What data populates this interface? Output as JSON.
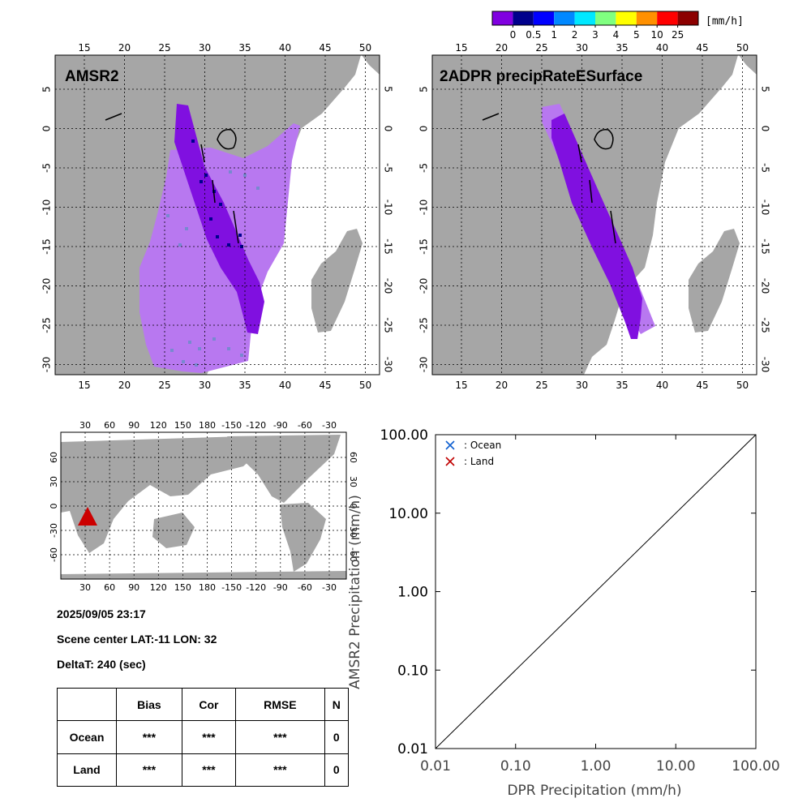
{
  "colorbar": {
    "unit_label": "[mm/h]",
    "ticks": [
      "0",
      "0.5",
      "1",
      "2",
      "3",
      "4",
      "5",
      "10",
      "25"
    ],
    "colors": [
      "#8000e0",
      "#00008c",
      "#0000ff",
      "#0088ff",
      "#00e8ff",
      "#80ff80",
      "#ffff00",
      "#ff9000",
      "#ff0000",
      "#8c0000"
    ]
  },
  "map_colors": {
    "land": "#a6a6a6",
    "ocean": "#ffffff",
    "amsr2_light": "#b878f0",
    "swath": "#8010e0",
    "dark_cell": "#000090",
    "mid_cell": "#7888d0"
  },
  "panels": {
    "amsr2": {
      "title": "AMSR2",
      "lon_ticks": [
        "15",
        "20",
        "25",
        "30",
        "35",
        "40",
        "45",
        "50"
      ],
      "lat_ticks": [
        "5",
        "0",
        "-5",
        "-10",
        "-15",
        "-20",
        "-25",
        "-30"
      ]
    },
    "dpr": {
      "title": "2ADPR precipRateESurface",
      "lon_ticks": [
        "15",
        "20",
        "25",
        "30",
        "35",
        "40",
        "45",
        "50"
      ],
      "lat_ticks": [
        "5",
        "0",
        "-5",
        "-10",
        "-15",
        "-20",
        "-25",
        "-30"
      ]
    }
  },
  "world_map": {
    "top_lon_ticks": [
      "30",
      "60",
      "90",
      "120",
      "150",
      "180",
      "-150",
      "-120",
      "-90",
      "-60",
      "-30"
    ],
    "bottom_lon_ticks": [
      "30",
      "60",
      "90",
      "120",
      "150",
      "180",
      "-150",
      "-120",
      "-90",
      "-60",
      "-30"
    ],
    "left_lat_ticks": [
      "60",
      "30",
      "0",
      "-30",
      "-60"
    ],
    "right_lat_ticks": [
      "60",
      "30",
      "0",
      "-30",
      "-60"
    ],
    "marker_color": "#cc0000"
  },
  "info": {
    "datetime": "2025/09/05 23:17",
    "scene_center": "Scene center LAT:-11   LON:  32",
    "delta_t": "DeltaT:  240 (sec)"
  },
  "stats_table": {
    "headers": [
      "",
      "Bias",
      "Cor",
      "RMSE",
      "N"
    ],
    "rows": [
      {
        "label": "Ocean",
        "bias": "***",
        "cor": "***",
        "rmse": "***",
        "n": "0"
      },
      {
        "label": "Land",
        "bias": "***",
        "cor": "***",
        "rmse": "***",
        "n": "0"
      }
    ]
  },
  "chart_data": {
    "type": "scatter",
    "xlabel": "DPR Precipitation (mm/h)",
    "ylabel": "AMSR2 Precipitation (mm/h)",
    "x_scale": "log",
    "y_scale": "log",
    "xlim": [
      0.01,
      100
    ],
    "ylim": [
      0.01,
      100
    ],
    "x_tick_labels": [
      "0.01",
      "0.10",
      "1.00",
      "10.00",
      "100.00"
    ],
    "y_tick_labels": [
      "0.01",
      "0.10",
      "1.00",
      "10.00",
      "100.00"
    ],
    "grid": false,
    "legend_position": "top-left",
    "series": [
      {
        "name": ": Ocean",
        "marker": "x",
        "color": "#1060d0",
        "points": []
      },
      {
        "name": ": Land",
        "marker": "x",
        "color": "#c00000",
        "points": []
      }
    ],
    "reference_line": {
      "from": [
        0.01,
        0.01
      ],
      "to": [
        100,
        100
      ]
    }
  }
}
